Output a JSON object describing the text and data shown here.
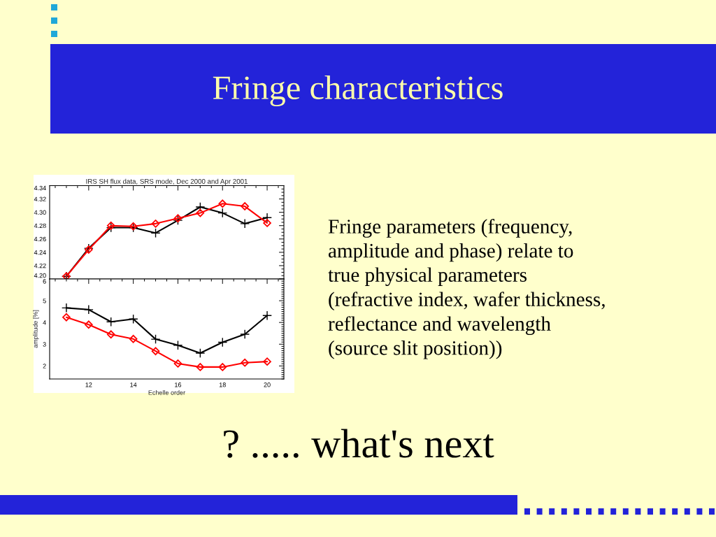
{
  "chart_data": [
    {
      "type": "line",
      "title": "Fringe characteristics",
      "subtitle": "IRS SH flux data, SRS mode, Dec 2000 and Apr 2001",
      "annotations": [
        "Fringe parameters (frequency,\namplitude and phase) relate to\ntrue physical parameters\n(refractive index, wafer thickness,\nreflectance and wavelength\n(source slit position))",
        "? ..... what's next"
      ],
      "x": [
        11,
        12,
        13,
        14,
        15,
        16,
        17,
        18,
        19,
        20
      ],
      "series": [
        {
          "color": "#000000",
          "marker": "cross",
          "values": [
            4.204,
            4.246,
            4.277,
            4.277,
            4.269,
            4.288,
            4.308,
            4.299,
            4.283,
            4.292
          ]
        },
        {
          "color": "#ff0000",
          "marker": "diamond",
          "values": [
            4.204,
            4.244,
            4.28,
            4.279,
            4.283,
            4.291,
            4.299,
            4.313,
            4.309,
            4.284
          ]
        }
      ],
      "xlim": [
        10.25,
        20.75
      ],
      "xticks": [
        12,
        14,
        16,
        18,
        20
      ],
      "ylim": [
        4.2,
        4.34
      ],
      "yticks": [
        {
          "value": 4.2,
          "label": "4.20"
        },
        4.22,
        4.24,
        4.26,
        4.28,
        {
          "value": 4.3,
          "label": "4.30"
        },
        4.32,
        4.34
      ],
      "tick_labels": "y",
      "grid": false,
      "legend": false
    },
    {
      "type": "line",
      "xlabel": "Echelle order",
      "ylabel": "amplitude [%]",
      "x": [
        11,
        12,
        13,
        14,
        15,
        16,
        17,
        18,
        19,
        20
      ],
      "series": [
        {
          "color": "#000000",
          "marker": "cross",
          "values": [
            4.67,
            4.59,
            4.03,
            4.16,
            3.23,
            2.95,
            2.59,
            3.09,
            3.46,
            4.32
          ]
        },
        {
          "color": "#ff0000",
          "marker": "diamond",
          "values": [
            4.24,
            3.9,
            3.45,
            3.24,
            2.68,
            2.11,
            1.95,
            1.95,
            2.15,
            2.2
          ]
        }
      ],
      "xlim": [
        10.25,
        20.75
      ],
      "xticks": [
        12,
        14,
        16,
        18,
        20
      ],
      "ylim": [
        1.4,
        6
      ],
      "yticks": [
        2,
        3,
        4,
        5,
        6
      ],
      "grid": false,
      "legend": false
    }
  ]
}
